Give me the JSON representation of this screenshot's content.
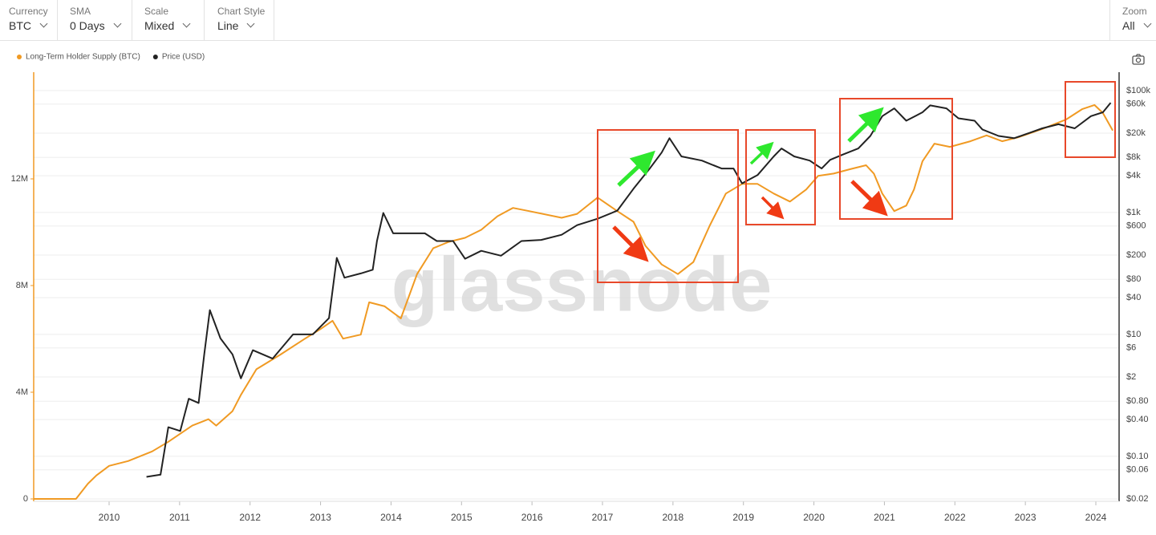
{
  "toolbar": {
    "controls": [
      {
        "label": "Currency",
        "value": "BTC"
      },
      {
        "label": "SMA",
        "value": "0 Days"
      },
      {
        "label": "Scale",
        "value": "Mixed"
      },
      {
        "label": "Chart Style",
        "value": "Line"
      }
    ],
    "zoom": {
      "label": "Zoom",
      "value": "All"
    }
  },
  "chart_data": {
    "type": "line",
    "watermark": "glassnode",
    "grid": true,
    "y2scale": "log",
    "xlim": [
      2008.93,
      2024.33
    ],
    "xticks": [
      2010,
      2011,
      2012,
      2013,
      2014,
      2015,
      2016,
      2017,
      2018,
      2019,
      2020,
      2021,
      2022,
      2023,
      2024
    ],
    "ylim": [
      0,
      16000000
    ],
    "yticks": [
      0,
      {
        "value": 4000000,
        "label": "4M"
      },
      {
        "value": 8000000,
        "label": "8M"
      },
      {
        "value": 12000000,
        "label": "12M"
      }
    ],
    "y2lim": [
      0.02,
      200000
    ],
    "y2ticks": [
      {
        "value": 0.02,
        "label": "$0.02"
      },
      {
        "value": 0.06,
        "label": "$0.06"
      },
      {
        "value": 0.1,
        "label": "$0.10"
      },
      {
        "value": 0.4,
        "label": "$0.40"
      },
      {
        "value": 0.8,
        "label": "$0.80"
      },
      {
        "value": 2,
        "label": "$2"
      },
      {
        "value": 6,
        "label": "$6"
      },
      {
        "value": 10,
        "label": "$10"
      },
      {
        "value": 40,
        "label": "$40"
      },
      {
        "value": 80,
        "label": "$80"
      },
      {
        "value": 200,
        "label": "$200"
      },
      {
        "value": 600,
        "label": "$600"
      },
      {
        "value": 1000,
        "label": "$1k"
      },
      {
        "value": 4000,
        "label": "$4k"
      },
      {
        "value": 8000,
        "label": "$8k"
      },
      {
        "value": 20000,
        "label": "$20k"
      },
      {
        "value": 60000,
        "label": "$60k"
      },
      {
        "value": 100000,
        "label": "$100k"
      }
    ],
    "series": [
      {
        "name": "Long-Term Holder Supply (BTC)",
        "color": "#f09a23",
        "axis": "y",
        "x": [
          2008.93,
          2009.53,
          2009.7,
          2009.82,
          2010.0,
          2010.27,
          2010.61,
          2010.84,
          2011.18,
          2011.41,
          2011.52,
          2011.75,
          2011.87,
          2012.09,
          2012.43,
          2012.78,
          2013.0,
          2013.17,
          2013.32,
          2013.57,
          2013.69,
          2013.91,
          2014.14,
          2014.37,
          2014.6,
          2014.82,
          2015.05,
          2015.28,
          2015.51,
          2015.73,
          2015.96,
          2016.42,
          2016.64,
          2016.93,
          2017.21,
          2017.44,
          2017.61,
          2017.84,
          2018.07,
          2018.29,
          2018.52,
          2018.75,
          2018.98,
          2019.2,
          2019.43,
          2019.66,
          2019.89,
          2020.06,
          2020.28,
          2020.51,
          2020.74,
          2020.85,
          2020.97,
          2021.14,
          2021.31,
          2021.42,
          2021.54,
          2021.71,
          2021.93,
          2022.22,
          2022.45,
          2022.67,
          2022.9,
          2023.24,
          2023.58,
          2023.81,
          2023.98,
          2024.1,
          2024.24
        ],
        "values": [
          0,
          0,
          570000,
          880000,
          1240000,
          1420000,
          1780000,
          2140000,
          2750000,
          2990000,
          2750000,
          3290000,
          3900000,
          4860000,
          5410000,
          6010000,
          6370000,
          6680000,
          6010000,
          6160000,
          7370000,
          7220000,
          6770000,
          8430000,
          9400000,
          9640000,
          9790000,
          10090000,
          10600000,
          10910000,
          10790000,
          10540000,
          10690000,
          11300000,
          10790000,
          10390000,
          9490000,
          8790000,
          8430000,
          8880000,
          10240000,
          11450000,
          11810000,
          11810000,
          11450000,
          11150000,
          11600000,
          12110000,
          12200000,
          12360000,
          12510000,
          12200000,
          11450000,
          10790000,
          11000000,
          11600000,
          12660000,
          13320000,
          13200000,
          13410000,
          13630000,
          13410000,
          13560000,
          13870000,
          14230000,
          14620000,
          14770000,
          14470000,
          13810000
        ]
      },
      {
        "name": "Price (USD)",
        "color": "#222222",
        "axis": "y2",
        "x": [
          2010.53,
          2010.73,
          2010.84,
          2011.01,
          2011.13,
          2011.27,
          2011.35,
          2011.43,
          2011.58,
          2011.75,
          2011.87,
          2012.04,
          2012.32,
          2012.61,
          2012.89,
          2013.12,
          2013.23,
          2013.34,
          2013.57,
          2013.74,
          2013.8,
          2013.89,
          2014.03,
          2014.25,
          2014.48,
          2014.65,
          2014.88,
          2015.05,
          2015.28,
          2015.56,
          2015.85,
          2016.13,
          2016.42,
          2016.64,
          2016.93,
          2017.21,
          2017.44,
          2017.67,
          2017.84,
          2017.95,
          2018.12,
          2018.41,
          2018.69,
          2018.86,
          2018.98,
          2019.2,
          2019.43,
          2019.54,
          2019.72,
          2019.94,
          2020.11,
          2020.23,
          2020.4,
          2020.63,
          2020.8,
          2020.97,
          2021.14,
          2021.31,
          2021.54,
          2021.65,
          2021.88,
          2022.05,
          2022.28,
          2022.39,
          2022.62,
          2022.84,
          2023.07,
          2023.24,
          2023.47,
          2023.7,
          2023.93,
          2024.1,
          2024.21
        ],
        "values": [
          0.046,
          0.05,
          0.3,
          0.26,
          0.88,
          0.75,
          4.7,
          25,
          8.6,
          4.7,
          1.9,
          5.5,
          4,
          10,
          10,
          18.5,
          180,
          85,
          100,
          115,
          340,
          980,
          455,
          455,
          455,
          340,
          340,
          174,
          235,
          195,
          340,
          355,
          430,
          620,
          790,
          1070,
          2450,
          5250,
          9600,
          16500,
          8300,
          7100,
          5250,
          5250,
          3000,
          4100,
          8300,
          11200,
          8300,
          7100,
          5250,
          7300,
          8800,
          11200,
          18000,
          38000,
          51000,
          32000,
          44000,
          57000,
          51000,
          35000,
          32000,
          23000,
          18000,
          16500,
          20400,
          24000,
          28000,
          24000,
          38000,
          44000,
          63000
        ]
      }
    ]
  }
}
